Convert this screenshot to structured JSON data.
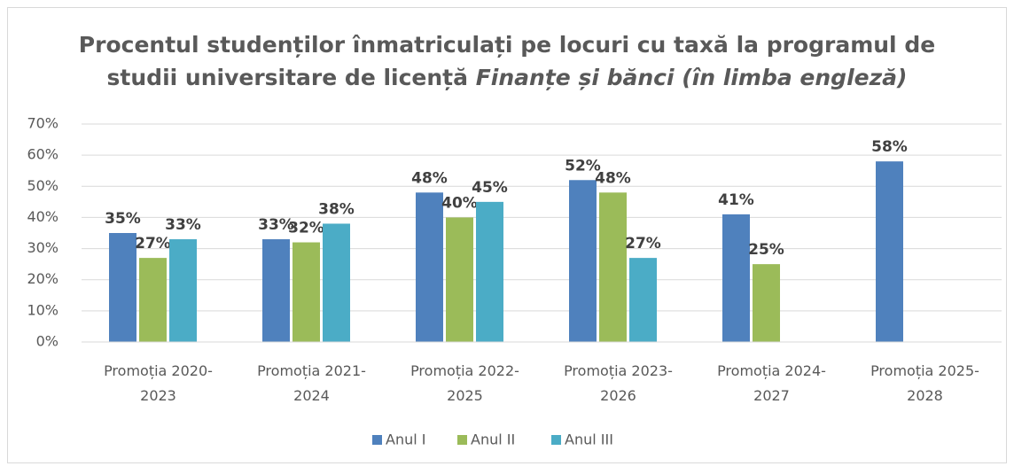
{
  "chart_data": {
    "type": "bar",
    "title": [
      "Procentul studenților înmatriculați pe locuri cu taxă la programul de",
      "studii universitare de licență"
    ],
    "title_emphasis": "Finanțe și bănci (în limba engleză)",
    "categories": [
      "Promoția 2020-2023",
      "Promoția 2021-2024",
      "Promoția 2022-2025",
      "Promoția 2023-2026",
      "Promoția 2024-2027",
      "Promoția 2025-2028"
    ],
    "series": [
      {
        "name": "Anul I",
        "color": "#4f81bd",
        "values": [
          35,
          33,
          48,
          52,
          41,
          58
        ],
        "value_labels": [
          "35%",
          "33%",
          "48%",
          "52%",
          "41%",
          "58%"
        ]
      },
      {
        "name": "Anul II",
        "color": "#9bbb59",
        "values": [
          27,
          32,
          40,
          48,
          25,
          null
        ],
        "value_labels": [
          "27%",
          "32%",
          "40%",
          "48%",
          "25%",
          null
        ]
      },
      {
        "name": "Anul III",
        "color": "#4bacc6",
        "values": [
          33,
          38,
          45,
          27,
          null,
          null
        ],
        "value_labels": [
          "33%",
          "38%",
          "45%",
          "27%",
          null,
          null
        ]
      }
    ],
    "ylim": [
      0,
      70
    ],
    "yticks": [
      {
        "value": 0,
        "label": "0%"
      },
      {
        "value": 10,
        "label": "10%"
      },
      {
        "value": 20,
        "label": "20%"
      },
      {
        "value": 30,
        "label": "30%"
      },
      {
        "value": 40,
        "label": "40%"
      },
      {
        "value": 50,
        "label": "50%"
      },
      {
        "value": 60,
        "label": "60%"
      },
      {
        "value": 70,
        "label": "70%"
      }
    ],
    "grid": true,
    "legend": "bottom"
  }
}
